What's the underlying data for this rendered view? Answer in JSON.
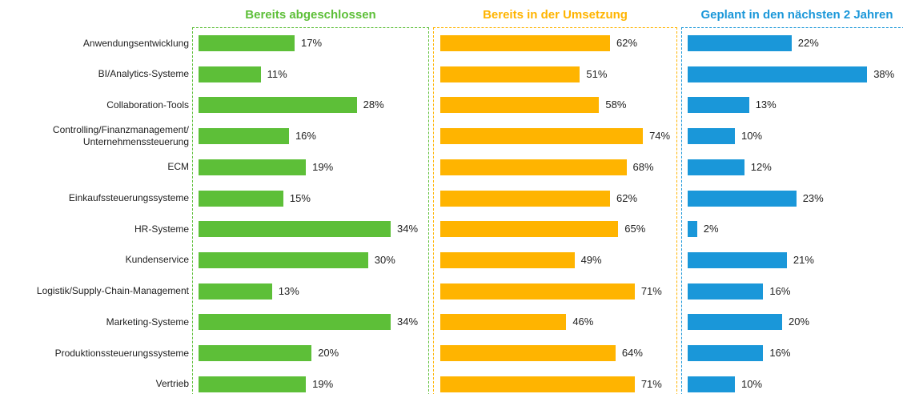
{
  "chart_data": {
    "type": "bar",
    "orientation": "horizontal",
    "categories": [
      "Anwendungsentwicklung",
      "BI/Analytics-Systeme",
      "Collaboration-Tools",
      "Controlling/Finanzmanagement/\nUnternehmenssteuerung",
      "ECM",
      "Einkaufssteuerungssysteme",
      "HR-Systeme",
      "Kundenservice",
      "Logistik/Supply-Chain-Management",
      "Marketing-Systeme",
      "Produktionssteuerungssysteme",
      "Vertrieb"
    ],
    "series": [
      {
        "name": "Bereits abgeschlossen",
        "color": "#5dbf38",
        "values": [
          17,
          11,
          28,
          16,
          19,
          15,
          34,
          30,
          13,
          34,
          20,
          19
        ],
        "value_labels": [
          "17%",
          "11%",
          "28%",
          "16%",
          "19%",
          "15%",
          "34%",
          "30%",
          "13%",
          "34%",
          "20%",
          "19%"
        ]
      },
      {
        "name": "Bereits in der Umsetzung",
        "color": "#ffb400",
        "values": [
          62,
          51,
          58,
          74,
          68,
          62,
          65,
          49,
          71,
          46,
          64,
          71
        ],
        "value_labels": [
          "62%",
          "51%",
          "58%",
          "74%",
          "68%",
          "62%",
          "65%",
          "49%",
          "71%",
          "46%",
          "64%",
          "71%"
        ]
      },
      {
        "name": "Geplant in den nächsten 2 Jahren",
        "color": "#1a97d9",
        "values": [
          22,
          38,
          13,
          10,
          12,
          23,
          2,
          21,
          16,
          20,
          16,
          10
        ],
        "value_labels": [
          "22%",
          "38%",
          "13%",
          "10%",
          "12%",
          "23%",
          "2%",
          "21%",
          "16%",
          "20%",
          "16%",
          "10%"
        ]
      }
    ]
  }
}
